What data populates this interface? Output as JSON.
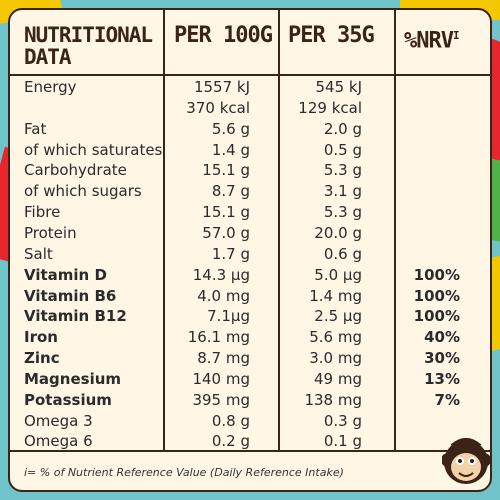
{
  "header": {
    "title": "NUTRITIONAL DATA",
    "col_per100": "PER 100G",
    "col_per35": "PER 35G",
    "col_nrv": "%NRV",
    "col_nrv_sup": "i"
  },
  "rows": [
    {
      "label": "Energy",
      "per100": "1557 kJ",
      "per35": "545 kJ",
      "nrv": "",
      "bold": false
    },
    {
      "label": "",
      "per100": "370 kcal",
      "per35": "129 kcal",
      "nrv": "",
      "bold": false
    },
    {
      "label": "Fat",
      "per100": "5.6 g",
      "per35": "2.0 g",
      "nrv": "",
      "bold": false
    },
    {
      "label": "of which saturates",
      "per100": "1.4 g",
      "per35": "0.5 g",
      "nrv": "",
      "bold": false
    },
    {
      "label": "Carbohydrate",
      "per100": "15.1 g",
      "per35": "5.3 g",
      "nrv": "",
      "bold": false
    },
    {
      "label": "of which sugars",
      "per100": "8.7 g",
      "per35": "3.1 g",
      "nrv": "",
      "bold": false
    },
    {
      "label": "Fibre",
      "per100": "15.1 g",
      "per35": "5.3 g",
      "nrv": "",
      "bold": false
    },
    {
      "label": "Protein",
      "per100": "57.0 g",
      "per35": "20.0 g",
      "nrv": "",
      "bold": false
    },
    {
      "label": "Salt",
      "per100": "1.7 g",
      "per35": "0.6 g",
      "nrv": "",
      "bold": false
    },
    {
      "label": "Vitamin D",
      "per100": "14.3 µg",
      "per35": "5.0 µg",
      "nrv": "100%",
      "bold": true
    },
    {
      "label": "Vitamin B6",
      "per100": "4.0 mg",
      "per35": "1.4 mg",
      "nrv": "100%",
      "bold": true
    },
    {
      "label": "Vitamin B12",
      "per100": "7.1µg",
      "per35": "2.5 µg",
      "nrv": "100%",
      "bold": true
    },
    {
      "label": "Iron",
      "per100": "16.1 mg",
      "per35": "5.6 mg",
      "nrv": "40%",
      "bold": true
    },
    {
      "label": "Zinc",
      "per100": "8.7 mg",
      "per35": "3.0 mg",
      "nrv": "30%",
      "bold": true
    },
    {
      "label": "Magnesium",
      "per100": "140 mg",
      "per35": "49 mg",
      "nrv": "13%",
      "bold": true
    },
    {
      "label": "Potassium",
      "per100": "395 mg",
      "per35": "138 mg",
      "nrv": "7%",
      "bold": true
    },
    {
      "label": "Omega 3",
      "per100": "0.8 g",
      "per35": "0.3 g",
      "nrv": "",
      "bold": false
    },
    {
      "label": "Omega 6",
      "per100": "0.2 g",
      "per35": "0.1 g",
      "nrv": "",
      "bold": false
    }
  ],
  "footnote": "i= % of Nutrient Reference Value (Daily Reference Intake)",
  "icons": {
    "mascot": "monkey-face-icon"
  },
  "colors": {
    "border": "#3b2417",
    "panel": "#fff6e6",
    "text": "#2b2b2b"
  }
}
